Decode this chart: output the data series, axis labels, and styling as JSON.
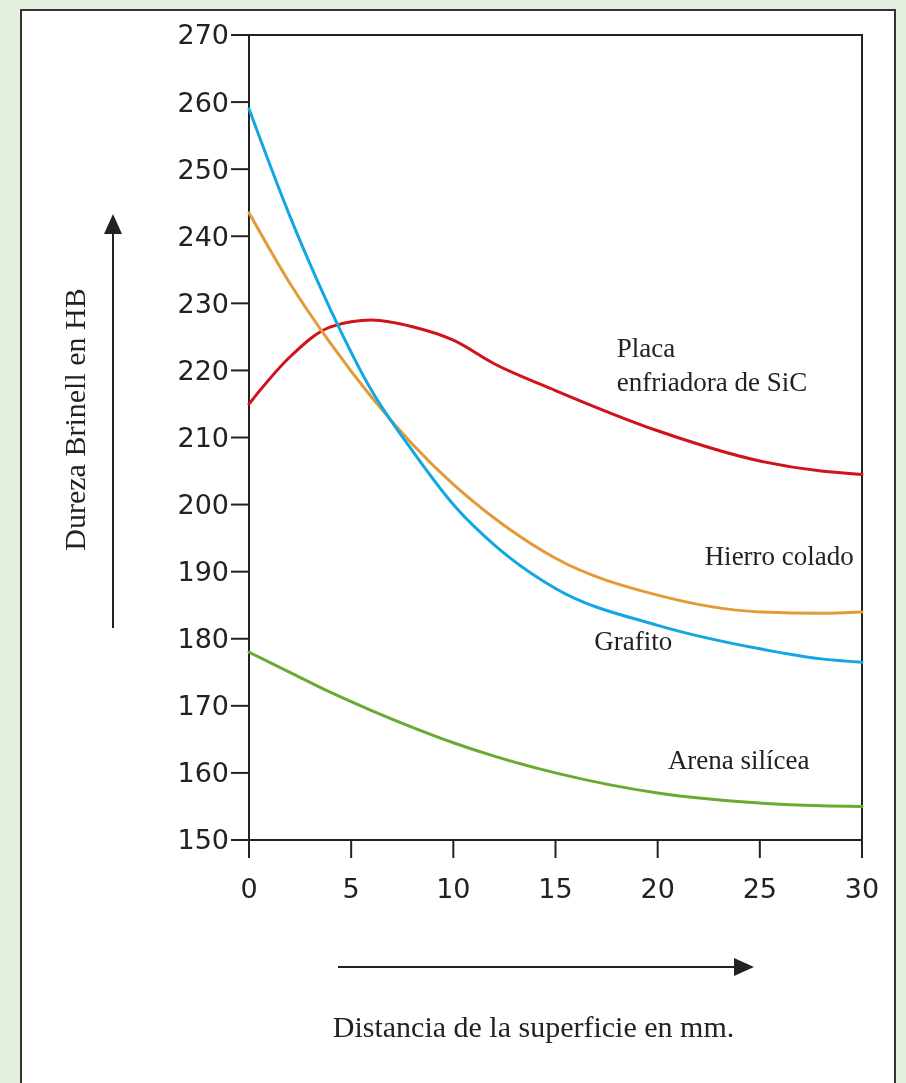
{
  "chart_data": {
    "type": "line",
    "xlabel": "Distancia de la superficie en mm.",
    "ylabel": "Dureza Brinell en HB",
    "x": [
      0,
      2,
      4,
      6,
      8,
      10,
      12,
      15,
      20,
      25,
      28,
      30
    ],
    "series": [
      {
        "name": "Placa enfriadora de SiC",
        "color": "#d0121b",
        "values": [
          215,
          222,
          226.5,
          227.5,
          226.5,
          224.5,
          221,
          217,
          211,
          206.5,
          205,
          204.5
        ]
      },
      {
        "name": "Hierro colado",
        "color": "#e39b3a",
        "values": [
          243.5,
          233,
          224,
          216,
          209,
          203,
          198,
          192,
          186.5,
          184,
          183.8,
          184
        ]
      },
      {
        "name": "Grafito",
        "color": "#12a6e2",
        "values": [
          259,
          243,
          229,
          217,
          208,
          200,
          194,
          187.5,
          182,
          178.5,
          177,
          176.5
        ]
      },
      {
        "name": "Arena silícea",
        "color": "#6aaa32",
        "values": [
          178,
          175,
          172,
          169.3,
          166.8,
          164.5,
          162.5,
          160,
          157,
          155.5,
          155.1,
          155
        ]
      }
    ],
    "xlim": [
      0,
      30
    ],
    "xticks": [
      0,
      5,
      10,
      15,
      20,
      25,
      30
    ],
    "ylim": [
      150,
      270
    ],
    "yticks": [
      150,
      160,
      170,
      180,
      190,
      200,
      210,
      220,
      230,
      240,
      250,
      260,
      270
    ],
    "grid": false,
    "legend": false,
    "marker": "none",
    "line_style": "solid"
  }
}
